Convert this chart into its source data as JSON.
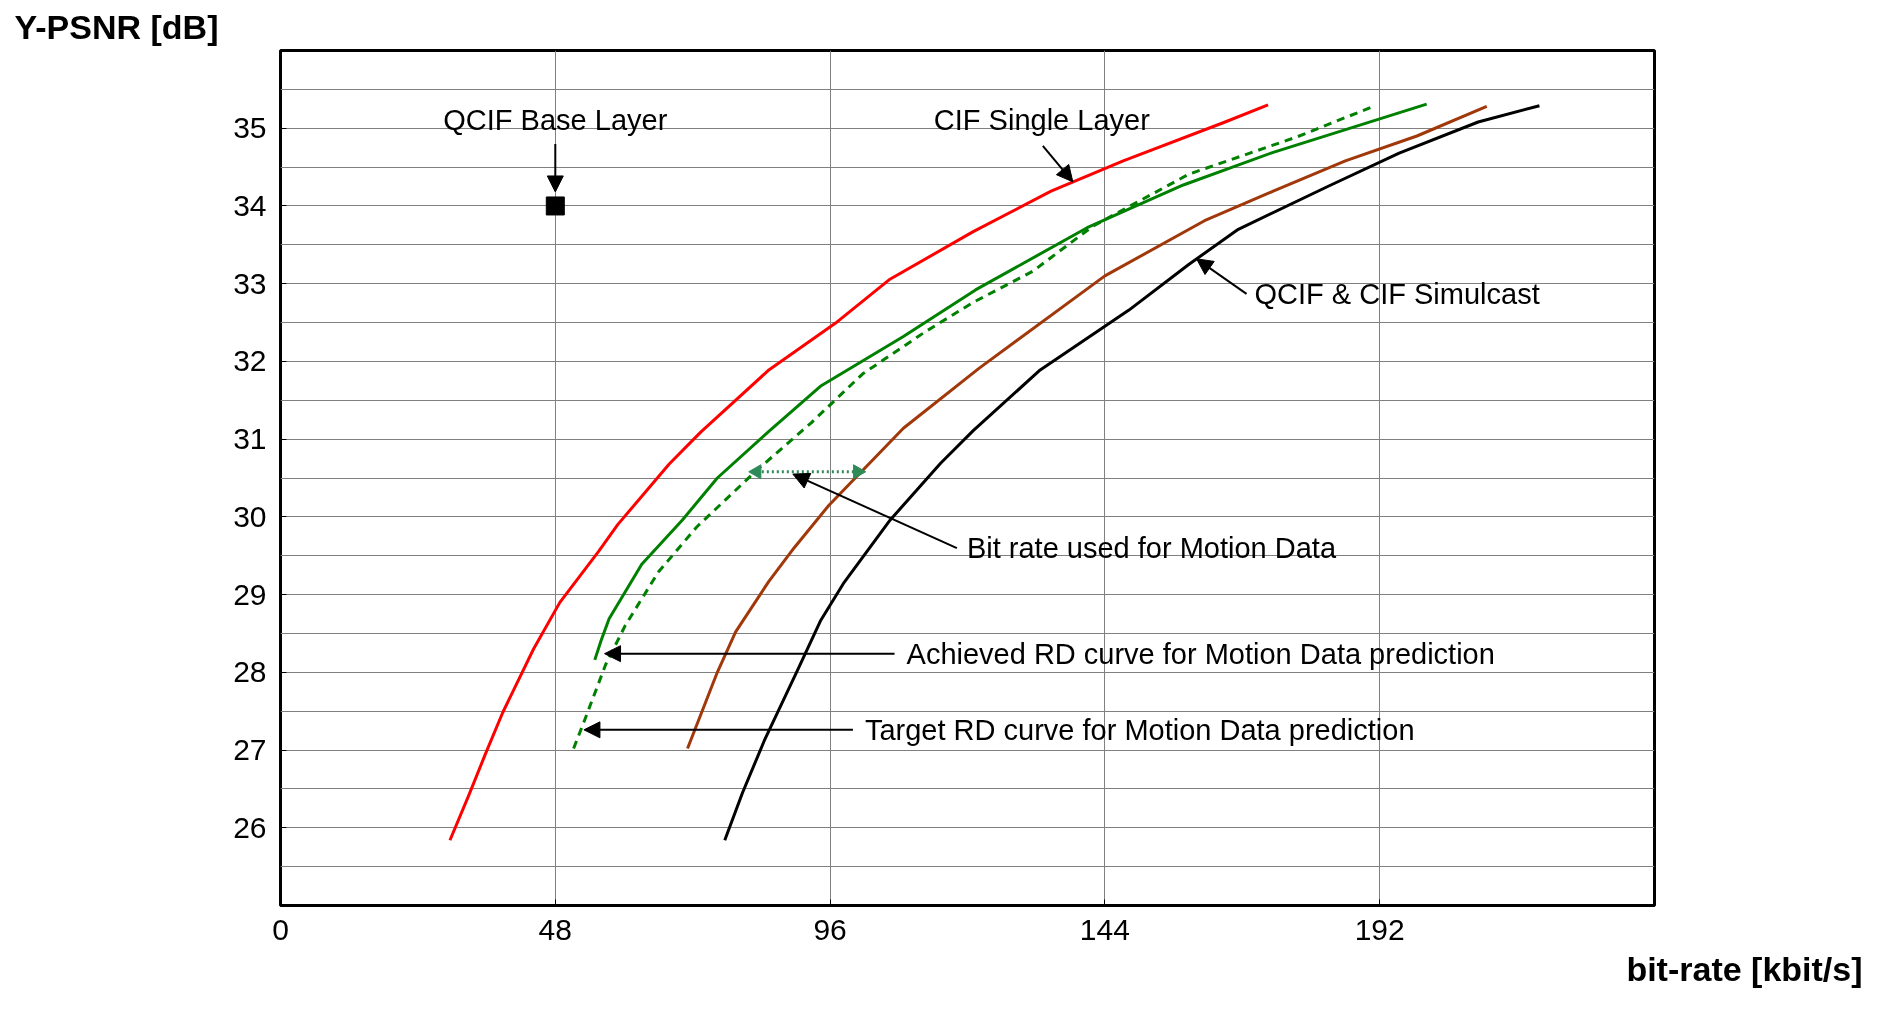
{
  "chart_data": {
    "type": "line",
    "xlabel": "bit-rate [kbit/s]",
    "ylabel": "Y-PSNR [dB]",
    "xlim": [
      0,
      240
    ],
    "ylim": [
      25,
      36
    ],
    "xticks": [
      0,
      48,
      96,
      144,
      192
    ],
    "yticks": [
      {
        "value": 25.5,
        "label": null
      },
      26,
      {
        "value": 26.5,
        "label": null
      },
      27,
      {
        "value": 27.5,
        "label": null
      },
      28,
      {
        "value": 28.5,
        "label": null
      },
      29,
      {
        "value": 29.5,
        "label": null
      },
      30,
      {
        "value": 30.5,
        "label": null
      },
      31,
      {
        "value": 31.5,
        "label": null
      },
      32,
      {
        "value": 32.5,
        "label": null
      },
      33,
      {
        "value": 33.5,
        "label": null
      },
      34,
      {
        "value": 34.5,
        "label": null
      },
      35,
      {
        "value": 35.5,
        "label": null
      }
    ],
    "grid": true,
    "line_style": "solid",
    "series": [
      {
        "type": "scatter",
        "marker": "square",
        "color": "#000000",
        "x": [
          48
        ],
        "values": [
          34
        ]
      },
      {
        "color": "#ff0000",
        "x": [
          29.6,
          32.9,
          35.8,
          38.8,
          44.2,
          48.8,
          55.6,
          58.9,
          67.9,
          73.4,
          85.3,
          96.9,
          106.3,
          121,
          134.6,
          147.2,
          165,
          172.5
        ],
        "values": [
          25.84,
          26.42,
          26.95,
          27.48,
          28.3,
          28.9,
          29.56,
          29.9,
          30.68,
          31.09,
          31.89,
          32.49,
          33.05,
          33.67,
          34.19,
          34.58,
          35.08,
          35.3
        ]
      },
      {
        "color": "#008000",
        "x": [
          54.9,
          56,
          57.4,
          63.1,
          70.2,
          76.3,
          85.3,
          94.3,
          108.8,
          121.4,
          140.9,
          157.7,
          173.4,
          200.2
        ],
        "values": [
          28.16,
          28.41,
          28.69,
          29.39,
          29.96,
          30.5,
          31.1,
          31.68,
          32.32,
          32.92,
          33.72,
          34.27,
          34.69,
          35.31
        ]
      },
      {
        "color": "#008000",
        "line_style": "dashed",
        "x": [
          51.2,
          53.2,
          56.8,
          60.2,
          66,
          72.7,
          83.2,
          92.7,
          101.7,
          112.6,
          121,
          131.4,
          141.9,
          158.7,
          177.6,
          191.2
        ],
        "values": [
          27.02,
          27.4,
          28.1,
          28.6,
          29.29,
          29.87,
          30.6,
          31.21,
          31.84,
          32.38,
          32.76,
          33.16,
          33.74,
          34.41,
          34.89,
          35.29
        ]
      },
      {
        "color": "#a0380a",
        "x": [
          71.1,
          76.3,
          79.5,
          85.3,
          89.7,
          95.8,
          108.8,
          122,
          144,
          161.4,
          173.4,
          186,
          198.5,
          210.7
        ],
        "values": [
          27.02,
          28.0,
          28.52,
          29.17,
          29.6,
          30.15,
          31.14,
          31.91,
          33.1,
          33.81,
          34.19,
          34.58,
          34.9,
          35.28
        ]
      },
      {
        "color": "#000000",
        "x": [
          77.6,
          80.7,
          84.5,
          90.4,
          94.3,
          98.3,
          106.5,
          115.3,
          121,
          132.7,
          148.2,
          158.7,
          167.3,
          183.2,
          195.4,
          209.2,
          219.9
        ],
        "values": [
          25.84,
          26.45,
          27.12,
          28.04,
          28.66,
          29.14,
          29.96,
          30.69,
          31.11,
          31.89,
          32.66,
          33.25,
          33.7,
          34.26,
          34.68,
          35.08,
          35.29
        ]
      },
      {
        "color": "#2e8b57",
        "line_style": "dotted",
        "marker": "triangle",
        "x": [
          83.2,
          100.8
        ],
        "values": [
          30.58,
          30.58
        ]
      }
    ],
    "annotations": [
      {
        "text": "QCIF Base Layer",
        "x": 48,
        "y": 34
      },
      {
        "text": "CIF Single Layer",
        "x": 138.4,
        "y": 34.31
      },
      {
        "text": "QCIF & CIF Simulcast",
        "x": 160,
        "y": 33.32
      },
      {
        "text": "Bit rate used for Motion Data",
        "x": 89.5,
        "y": 30.55
      },
      {
        "text": "Achieved RD curve for Motion Data prediction",
        "x": 56.6,
        "y": 28.24
      },
      {
        "text": "Target RD curve for Motion Data prediction",
        "x": 53,
        "y": 27.26
      }
    ]
  }
}
